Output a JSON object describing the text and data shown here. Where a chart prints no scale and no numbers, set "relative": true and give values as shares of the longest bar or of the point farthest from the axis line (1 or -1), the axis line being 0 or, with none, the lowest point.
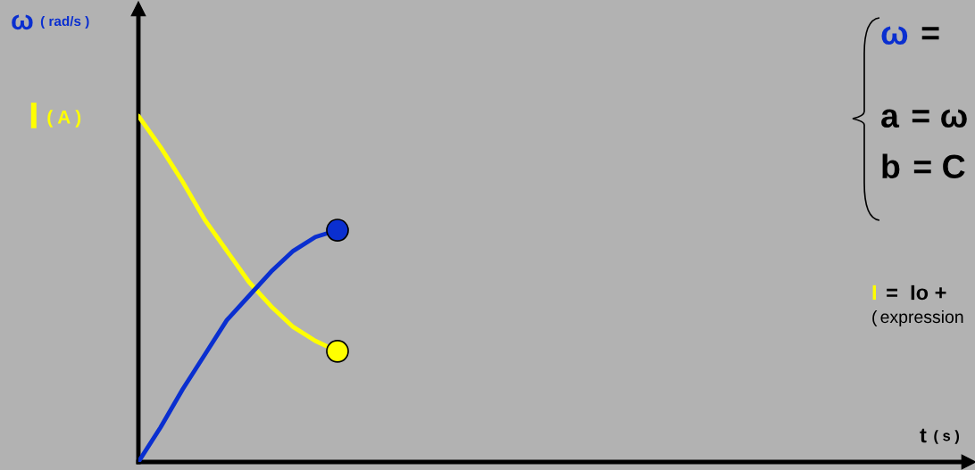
{
  "chart_data": {
    "type": "line",
    "relative": true,
    "categories": [
      null,
      null,
      null,
      null,
      null,
      null,
      null,
      null,
      null,
      null
    ],
    "series": [
      {
        "color": "#ffff00",
        "values": [
          1,
          0.91,
          0.81,
          0.7,
          0.61,
          0.52,
          0.45,
          0.39,
          0.35,
          0.32
        ]
      },
      {
        "color": "#0a2fd0",
        "values": [
          0,
          0.1,
          0.21,
          0.31,
          0.41,
          0.48,
          0.55,
          0.61,
          0.65,
          0.67
        ]
      }
    ],
    "annotations": [
      "ω ( rad/s )",
      "I ( A )",
      "ω =",
      "a = ω",
      "b = C",
      "I =  Io +",
      "(expression",
      "t ( s )"
    ]
  }
}
